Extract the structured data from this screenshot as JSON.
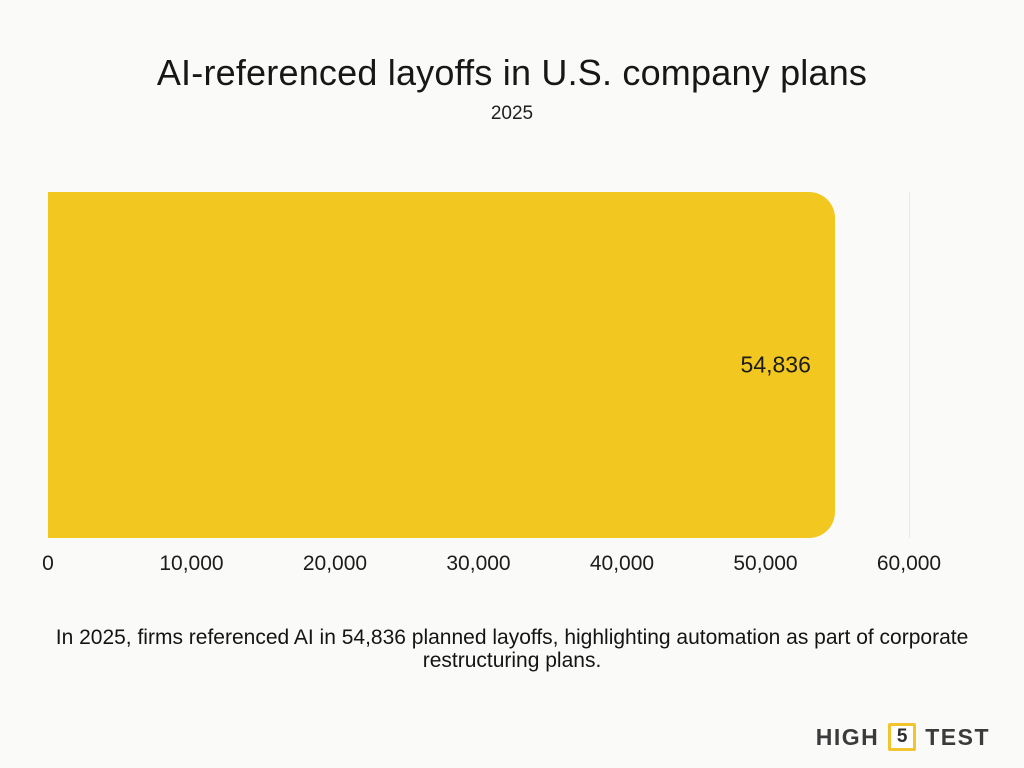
{
  "page": {
    "background": "#fafaf8",
    "caption": "In 2025, firms referenced AI in 54,836 planned layoffs, highlighting automation as part of corporate restructuring plans."
  },
  "chart_data": {
    "type": "bar",
    "orientation": "horizontal",
    "title": "AI-referenced layoffs in U.S. company plans",
    "subtitle": "2025",
    "categories": [
      "2025"
    ],
    "values": [
      54836
    ],
    "value_labels": [
      "54,836"
    ],
    "xlabel": "",
    "ylabel": "",
    "xlim": [
      0,
      60000
    ],
    "x_ticks": [
      0,
      10000,
      20000,
      30000,
      40000,
      50000,
      60000
    ],
    "x_tick_labels": [
      "0",
      "10,000",
      "20,000",
      "30,000",
      "40,000",
      "50,000",
      "60,000"
    ],
    "bar_color": "#f2c71f",
    "grid": "vertical-ticks",
    "gridline_color": "#eaeae8",
    "legend": "none"
  },
  "branding": {
    "logo_part1": "HIGH",
    "logo_number": "5",
    "logo_part2": "TEST",
    "accent_color": "#f2c430",
    "text_color": "#3b3b3b"
  }
}
